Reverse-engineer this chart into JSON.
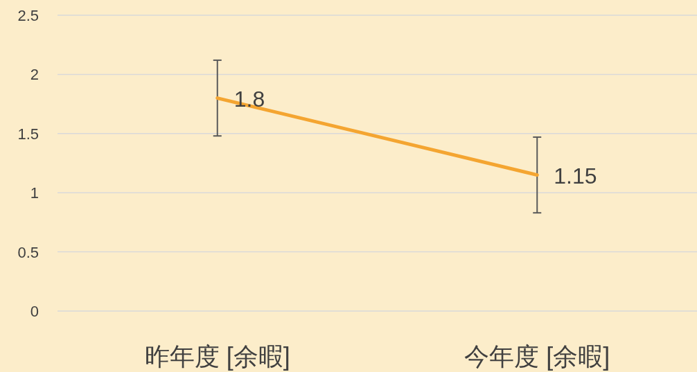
{
  "chart_data": {
    "type": "line",
    "categories": [
      "昨年度 [余暇]",
      "今年度 [余暇]"
    ],
    "series": [
      {
        "color": "#f4a531",
        "values": [
          1.8,
          1.15
        ],
        "errors": [
          0.32,
          0.32
        ]
      }
    ],
    "ylim": [
      0,
      2.5
    ],
    "yticks": [
      0,
      0.5,
      1,
      1.5,
      2,
      2.5
    ],
    "grid": "y",
    "data_labels": true,
    "marker": "none"
  }
}
